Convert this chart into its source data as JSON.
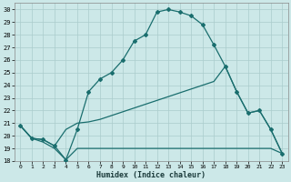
{
  "xlabel": "Humidex (Indice chaleur)",
  "bg_color": "#cce8e8",
  "grid_color": "#aacccc",
  "line_color": "#1a6e6e",
  "xlim": [
    -0.5,
    23.5
  ],
  "ylim": [
    18,
    30.5
  ],
  "xtick_labels": [
    "0",
    "1",
    "2",
    "3",
    "4",
    "5",
    "6",
    "7",
    "8",
    "9",
    "10",
    "11",
    "12",
    "13",
    "14",
    "15",
    "16",
    "17",
    "18",
    "19",
    "20",
    "21",
    "22",
    "23"
  ],
  "ytick_labels": [
    "18",
    "19",
    "20",
    "21",
    "22",
    "23",
    "24",
    "25",
    "26",
    "27",
    "28",
    "29",
    "30"
  ],
  "ytick_vals": [
    18,
    19,
    20,
    21,
    22,
    23,
    24,
    25,
    26,
    27,
    28,
    29,
    30
  ],
  "curve1_x": [
    0,
    1,
    2,
    3,
    4,
    5,
    6,
    7,
    8,
    9,
    10,
    11,
    12,
    13,
    14,
    15,
    16,
    17,
    18,
    19,
    20,
    21,
    22,
    23
  ],
  "curve1_y": [
    20.8,
    19.8,
    19.7,
    19.2,
    18.1,
    20.5,
    23.5,
    24.5,
    25.0,
    26.0,
    27.5,
    28.0,
    29.8,
    30.0,
    29.8,
    29.5,
    28.8,
    27.2,
    25.5,
    23.5,
    21.8,
    22.0,
    20.5,
    18.6
  ],
  "curve2_x": [
    0,
    1,
    2,
    3,
    4,
    5,
    6,
    7,
    8,
    9,
    10,
    11,
    12,
    13,
    14,
    15,
    16,
    17,
    18,
    19,
    20,
    21,
    22,
    23
  ],
  "curve2_y": [
    20.8,
    19.8,
    19.7,
    19.2,
    20.5,
    21.0,
    21.1,
    21.3,
    21.6,
    21.9,
    22.2,
    22.5,
    22.8,
    23.1,
    23.4,
    23.7,
    24.0,
    24.3,
    25.5,
    23.5,
    21.8,
    22.0,
    20.5,
    18.6
  ],
  "curve3_x": [
    0,
    1,
    2,
    3,
    4,
    5,
    6,
    7,
    8,
    9,
    10,
    11,
    12,
    13,
    14,
    15,
    16,
    17,
    18,
    19,
    20,
    21,
    22,
    23
  ],
  "curve3_y": [
    20.8,
    19.8,
    19.5,
    19.0,
    18.1,
    19.0,
    19.0,
    19.0,
    19.0,
    19.0,
    19.0,
    19.0,
    19.0,
    19.0,
    19.0,
    19.0,
    19.0,
    19.0,
    19.0,
    19.0,
    19.0,
    19.0,
    19.0,
    18.6
  ]
}
